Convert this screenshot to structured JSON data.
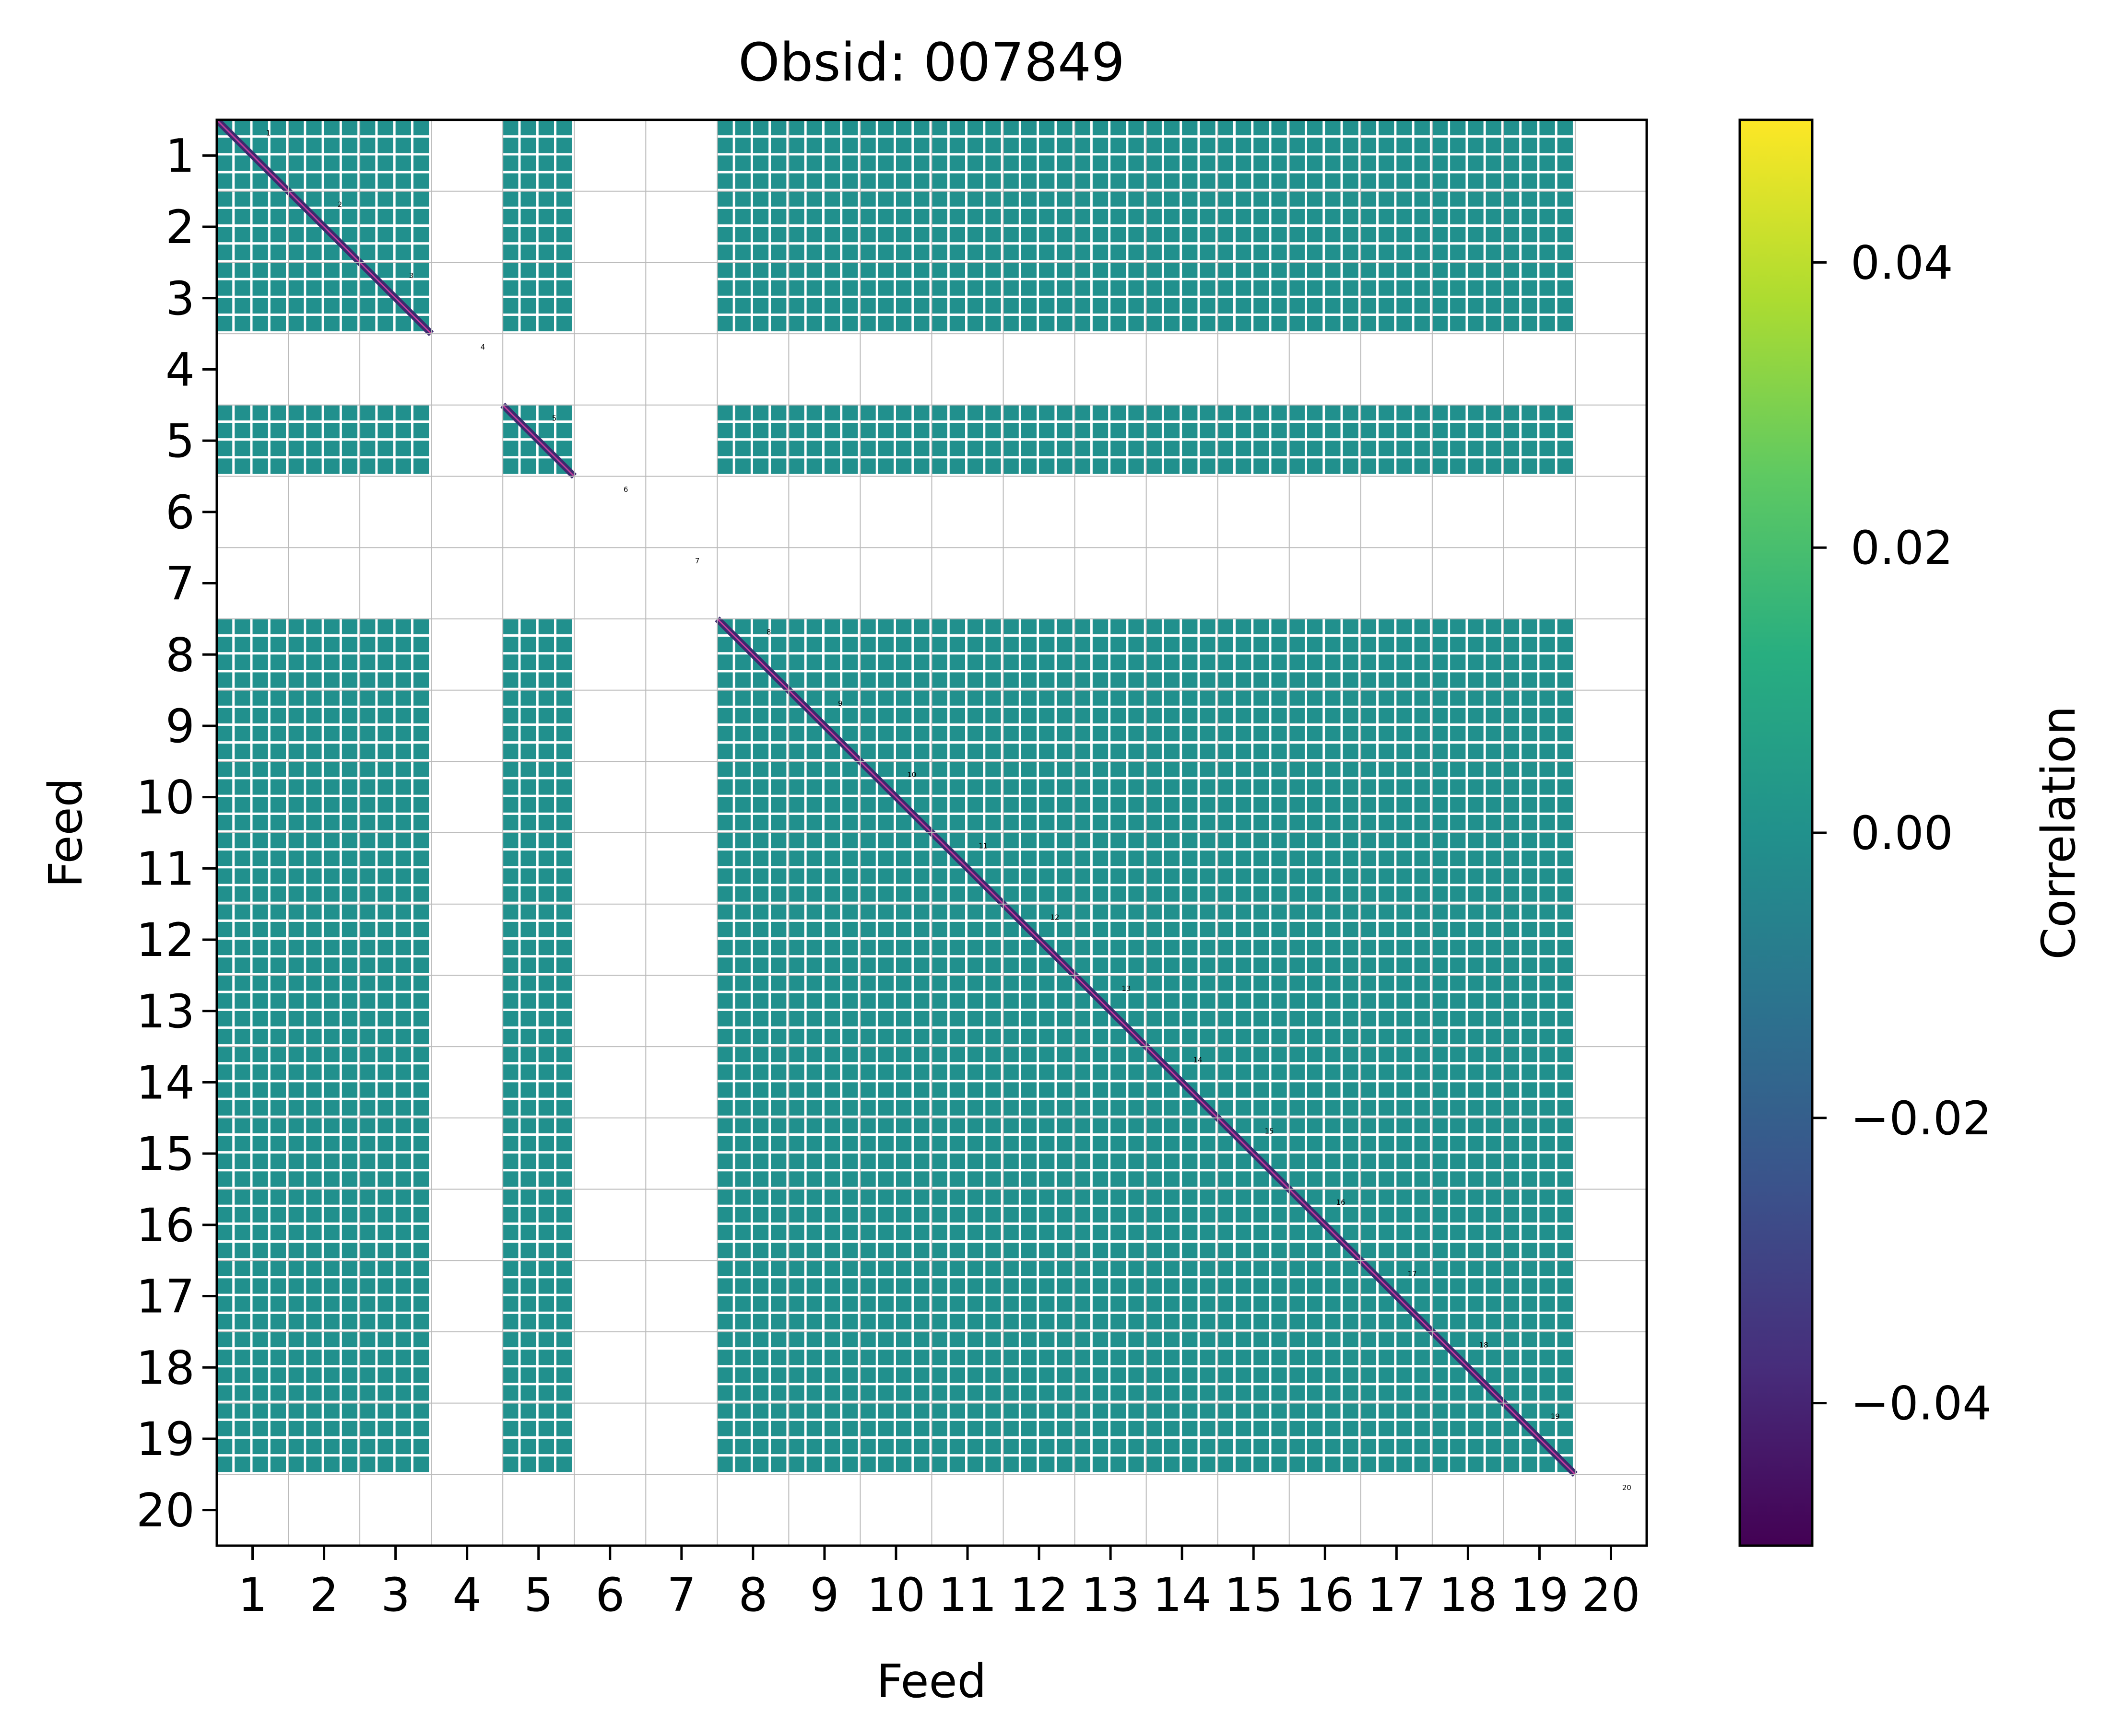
{
  "chart_data": {
    "type": "heatmap",
    "title": "Obsid: 007849",
    "xlabel": "Feed",
    "ylabel": "Feed",
    "x_categories": [
      "1",
      "2",
      "3",
      "4",
      "5",
      "6",
      "7",
      "8",
      "9",
      "10",
      "11",
      "12",
      "13",
      "14",
      "15",
      "16",
      "17",
      "18",
      "19",
      "20"
    ],
    "y_categories": [
      "1",
      "2",
      "3",
      "4",
      "5",
      "6",
      "7",
      "8",
      "9",
      "10",
      "11",
      "12",
      "13",
      "14",
      "15",
      "16",
      "17",
      "18",
      "19",
      "20"
    ],
    "valid_feeds": [
      1,
      2,
      3,
      5,
      8,
      9,
      10,
      11,
      12,
      13,
      14,
      15,
      16,
      17,
      18,
      19
    ],
    "masked_feeds": [
      4,
      6,
      7,
      20
    ],
    "diagonal_labels": [
      "1",
      "2",
      "3",
      "4",
      "5",
      "6",
      "7",
      "8",
      "9",
      "10",
      "11",
      "12",
      "13",
      "14",
      "15",
      "16",
      "17",
      "18",
      "19",
      "20"
    ],
    "off_diagonal_value": 0.0,
    "diagonal_value": -0.05,
    "colorbar": {
      "label": "Correlation",
      "colormap": "viridis",
      "vmin": -0.05,
      "vmax": 0.05,
      "ticks": [
        0.04,
        0.02,
        0.0,
        -0.02,
        -0.04
      ],
      "tick_labels": [
        "0.04",
        "0.02",
        "0.00",
        "−0.02",
        "−0.04"
      ]
    },
    "colors": {
      "cell": "#21908d",
      "diagonal": "#3b2a6e",
      "gap": "#ffffff",
      "grid": "#bbbbbb"
    }
  }
}
